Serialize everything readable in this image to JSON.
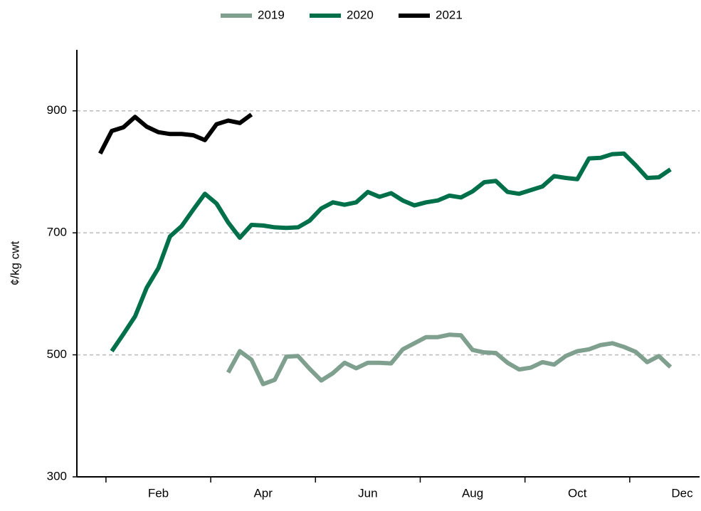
{
  "chart_data": {
    "type": "line",
    "y_label": "¢/kg cwt",
    "x": [
      1,
      2,
      3,
      4,
      5,
      6,
      7,
      8,
      9,
      10,
      11,
      12,
      13,
      14,
      15,
      16,
      17,
      18,
      19,
      20,
      21,
      22,
      23,
      24,
      25,
      26,
      27,
      28,
      29,
      30,
      31,
      32,
      33,
      34,
      35,
      36,
      37,
      38,
      39,
      40,
      41,
      42,
      43,
      44,
      45,
      46,
      47,
      48,
      49,
      50
    ],
    "xlim": [
      -1,
      52.5
    ],
    "xticks": [
      {
        "value": 6,
        "label": "Feb"
      },
      {
        "value": 15,
        "label": "Apr"
      },
      {
        "value": 24,
        "label": "Jun"
      },
      {
        "value": 33,
        "label": "Aug"
      },
      {
        "value": 42,
        "label": "Oct"
      },
      {
        "value": 51,
        "label": "Dec"
      }
    ],
    "xminor_ticks": [
      1.5,
      10.5,
      19.5,
      28.5,
      37.5,
      46.5
    ],
    "ylim": [
      300,
      1000
    ],
    "yticks": [
      300,
      500,
      700,
      900
    ],
    "grid": true,
    "legend": "top",
    "series": [
      {
        "name": "2019",
        "color": "#7fa08f",
        "values": [
          null,
          null,
          null,
          null,
          null,
          null,
          null,
          null,
          null,
          null,
          null,
          471,
          506,
          492,
          452,
          459,
          497,
          498,
          477,
          458,
          470,
          487,
          478,
          487,
          487,
          486,
          509,
          519,
          529,
          529,
          533,
          532,
          508,
          504,
          503,
          487,
          476,
          479,
          488,
          484,
          498,
          506,
          509,
          516,
          519,
          513,
          505,
          488,
          498,
          480
        ]
      },
      {
        "name": "2020",
        "color": "#00704a",
        "values": [
          null,
          506,
          534,
          563,
          610,
          642,
          694,
          711,
          738,
          764,
          748,
          717,
          692,
          713,
          712,
          709,
          708,
          709,
          720,
          740,
          750,
          746,
          750,
          767,
          759,
          765,
          753,
          745,
          750,
          753,
          761,
          758,
          768,
          783,
          785,
          767,
          764,
          770,
          776,
          793,
          790,
          788,
          822,
          823,
          829,
          830,
          811,
          790,
          791,
          804
        ]
      },
      {
        "name": "2021",
        "color": "#000000",
        "values": [
          830,
          867,
          873,
          890,
          874,
          865,
          862,
          862,
          860,
          852,
          878,
          884,
          880,
          894,
          null,
          null,
          null,
          null,
          null,
          null,
          null,
          null,
          null,
          null,
          null,
          null,
          null,
          null,
          null,
          null,
          null,
          null,
          null,
          null,
          null,
          null,
          null,
          null,
          null,
          null,
          null,
          null,
          null,
          null,
          null,
          null,
          null,
          null,
          null,
          null
        ]
      }
    ]
  }
}
